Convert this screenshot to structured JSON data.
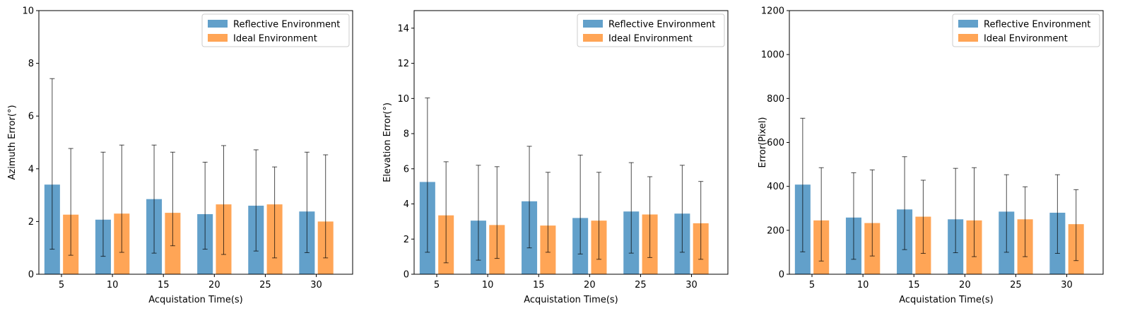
{
  "chart_data": [
    {
      "type": "bar",
      "categories": [
        "5",
        "10",
        "15",
        "20",
        "25",
        "30"
      ],
      "xlabel": "Acquistation Time(s)",
      "ylabel": "Azimuth Error(°)",
      "ylim": [
        0,
        10
      ],
      "yticks": [
        0,
        2,
        4,
        6,
        8,
        10
      ],
      "legend_position": "top-right",
      "series": [
        {
          "name": "Reflective Environment",
          "color": "#1f77b4",
          "values": [
            3.4,
            2.07,
            2.85,
            2.28,
            2.6,
            2.38
          ],
          "err_low": [
            0.95,
            0.68,
            0.8,
            0.95,
            0.88,
            0.82
          ],
          "err_high": [
            7.42,
            4.63,
            4.9,
            4.25,
            4.72,
            4.63
          ]
        },
        {
          "name": "Ideal Environment",
          "color": "#ff7f0e",
          "values": [
            2.26,
            2.3,
            2.33,
            2.65,
            2.65,
            2.0
          ],
          "err_low": [
            0.72,
            0.83,
            1.08,
            0.75,
            0.62,
            0.62
          ],
          "err_high": [
            4.77,
            4.9,
            4.63,
            4.88,
            4.07,
            4.53
          ]
        }
      ]
    },
    {
      "type": "bar",
      "categories": [
        "5",
        "10",
        "15",
        "20",
        "25",
        "30"
      ],
      "xlabel": "Acquistation Time(s)",
      "ylabel": "Elevation Error(°)",
      "ylim": [
        0,
        15
      ],
      "yticks": [
        0,
        2,
        4,
        6,
        8,
        10,
        12,
        14
      ],
      "legend_position": "top-right",
      "series": [
        {
          "name": "Reflective Environment",
          "color": "#1f77b4",
          "values": [
            5.25,
            3.05,
            4.15,
            3.2,
            3.57,
            3.45
          ],
          "err_low": [
            1.25,
            0.8,
            1.5,
            1.15,
            1.2,
            1.25
          ],
          "err_high": [
            10.03,
            6.2,
            7.28,
            6.78,
            6.35,
            6.2
          ]
        },
        {
          "name": "Ideal Environment",
          "color": "#ff7f0e",
          "values": [
            3.35,
            2.8,
            2.77,
            3.05,
            3.4,
            2.9
          ],
          "err_low": [
            0.65,
            0.9,
            1.25,
            0.85,
            0.95,
            0.85
          ],
          "err_high": [
            6.4,
            6.12,
            5.8,
            5.8,
            5.55,
            5.28
          ]
        }
      ]
    },
    {
      "type": "bar",
      "categories": [
        "5",
        "10",
        "15",
        "20",
        "25",
        "30"
      ],
      "xlabel": "Acquistation Time(s)",
      "ylabel": "Error(Pixel)",
      "ylim": [
        0,
        1200
      ],
      "yticks": [
        0,
        200,
        400,
        600,
        800,
        1000,
        1200
      ],
      "legend_position": "top-right",
      "series": [
        {
          "name": "Reflective Environment",
          "color": "#1f77b4",
          "values": [
            408,
            258,
            295,
            250,
            285,
            280
          ],
          "err_low": [
            102,
            68,
            112,
            98,
            100,
            95
          ],
          "err_high": [
            710,
            462,
            535,
            482,
            453,
            453
          ]
        },
        {
          "name": "Ideal Environment",
          "color": "#ff7f0e",
          "values": [
            245,
            233,
            262,
            245,
            250,
            228
          ],
          "err_low": [
            60,
            83,
            95,
            80,
            80,
            62
          ],
          "err_high": [
            485,
            475,
            428,
            485,
            398,
            385
          ]
        }
      ]
    }
  ]
}
